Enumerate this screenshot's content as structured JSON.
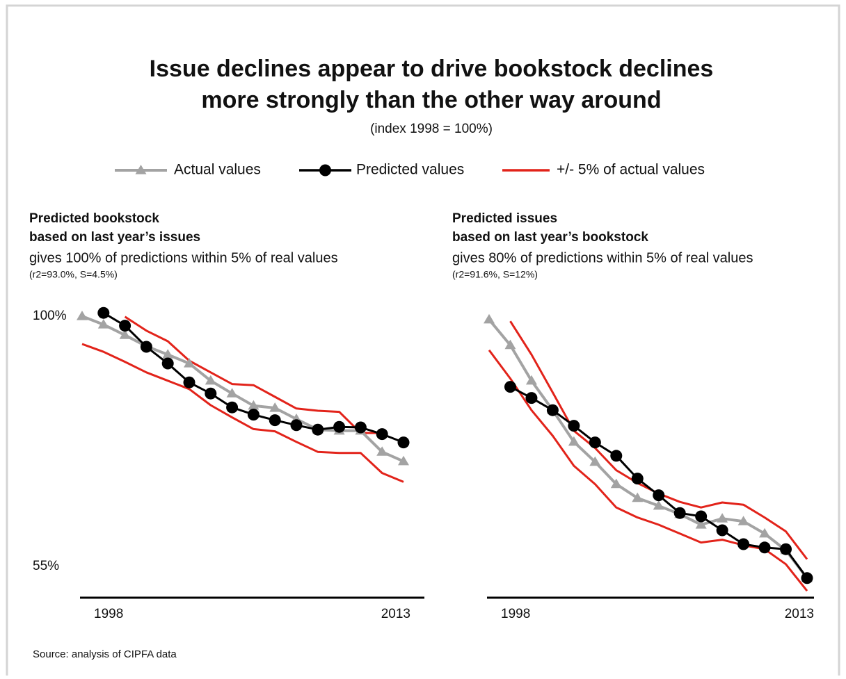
{
  "title": [
    "Issue declines appear to drive bookstock declines",
    "more strongly than the other way around"
  ],
  "subtitle": "(index 1998 = 100%)",
  "source": "Source: analysis of CIPFA data",
  "chart_data": [
    {
      "type": "line",
      "title": "Predicted bookstock",
      "subtitle": "based on last year’s issues",
      "description": "gives 100% of predictions within 5% of real values",
      "note": "(r2=93.0%, S=4.5%)",
      "x": [
        1998,
        1999,
        2000,
        2001,
        2002,
        2003,
        2004,
        2005,
        2006,
        2007,
        2008,
        2009,
        2010,
        2011,
        2012,
        2013
      ],
      "xlim": [
        1998,
        2013
      ],
      "xticks": [
        1998,
        2013
      ],
      "ylim": [
        50,
        102
      ],
      "yticks": [
        {
          "value": 100,
          "label": "100%"
        },
        {
          "value": 55,
          "label": "55%"
        }
      ],
      "series": [
        {
          "name": "Actual values",
          "color": "#a3a3a3",
          "marker": "triangle",
          "values": [
            100,
            98.5,
            96.6,
            94.6,
            93.1,
            91.5,
            88.4,
            86.1,
            83.9,
            83.5,
            81.5,
            79.6,
            79.4,
            79.4,
            75.6,
            73.9
          ]
        },
        {
          "name": "Predicted values",
          "color": "#000000",
          "marker": "circle",
          "values": [
            null,
            100.6,
            98.3,
            94.5,
            91.5,
            88.1,
            86.1,
            83.6,
            82.3,
            81.3,
            80.4,
            79.6,
            80.1,
            80.0,
            78.8,
            77.3
          ]
        },
        {
          "name": "+/- 5% of actual values",
          "color": "#e2231a",
          "marker": "none",
          "upper": [
            null,
            null,
            99.9,
            97.4,
            95.5,
            92.0,
            89.9,
            87.8,
            87.6,
            85.5,
            83.4,
            83.0,
            82.8,
            79.0,
            79.0,
            null
          ],
          "lower": [
            95.0,
            93.6,
            91.8,
            89.9,
            88.4,
            86.9,
            84.0,
            81.8,
            79.7,
            79.3,
            77.4,
            75.6,
            75.4,
            75.4,
            71.8,
            70.2
          ]
        }
      ]
    },
    {
      "type": "line",
      "title": "Predicted issues",
      "subtitle": "based on last year’s bookstock",
      "description": "gives 80% of predictions within 5% of real values",
      "note": "(r2=91.6%, S=12%)",
      "x": [
        1998,
        1999,
        2000,
        2001,
        2002,
        2003,
        2004,
        2005,
        2006,
        2007,
        2008,
        2009,
        2010,
        2011,
        2012,
        2013
      ],
      "xlim": [
        1998,
        2013
      ],
      "xticks": [
        1998,
        2013
      ],
      "ylim": [
        50,
        102
      ],
      "series": [
        {
          "name": "Actual values",
          "color": "#a3a3a3",
          "marker": "triangle",
          "values": [
            99.4,
            94.8,
            88.4,
            83.1,
            77.4,
            73.8,
            69.8,
            67.3,
            65.9,
            64.4,
            62.5,
            63.6,
            63.1,
            60.9,
            57.9,
            52.9
          ]
        },
        {
          "name": "Predicted values",
          "color": "#000000",
          "marker": "circle",
          "values": [
            null,
            87.3,
            85.3,
            83.1,
            80.3,
            77.3,
            74.9,
            70.8,
            67.8,
            64.6,
            64.0,
            61.5,
            59.0,
            58.4,
            58.1,
            52.9
          ]
        },
        {
          "name": "+/- 5% of actual values",
          "color": "#e2231a",
          "marker": "none",
          "upper": [
            null,
            99.1,
            93.1,
            86.3,
            79.4,
            76.3,
            72.3,
            70.0,
            68.1,
            66.6,
            65.6,
            66.5,
            66.1,
            63.8,
            61.3,
            56.3
          ],
          "lower": [
            93.9,
            88.8,
            83.1,
            78.5,
            73.1,
            69.8,
            65.6,
            63.8,
            62.5,
            60.9,
            59.3,
            59.8,
            58.8,
            58.1,
            55.4,
            50.6
          ]
        }
      ]
    }
  ]
}
